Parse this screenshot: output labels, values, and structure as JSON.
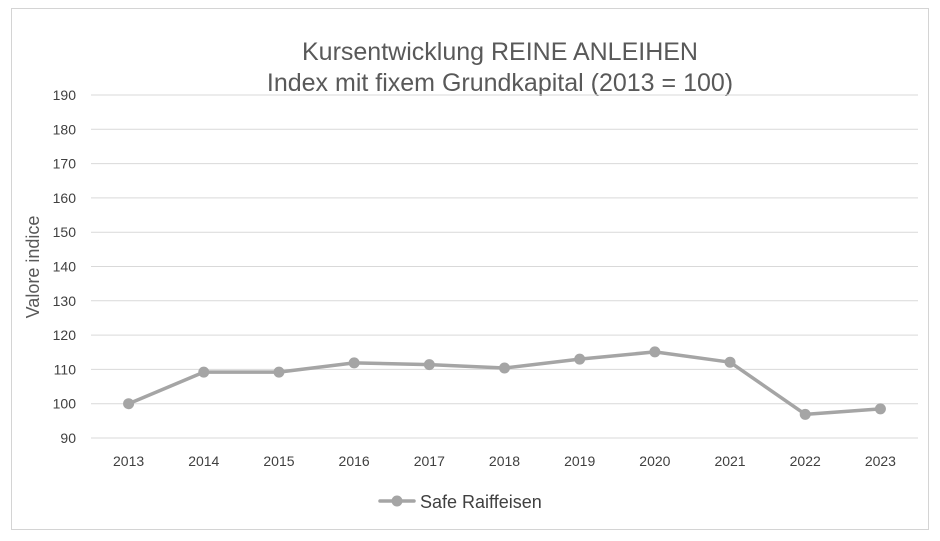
{
  "chart_data": {
    "type": "line",
    "title_line1": "Kursentwicklung REINE ANLEIHEN",
    "title_line2": "Index mit fixem Grundkapital (2013 = 100)",
    "xlabel": "",
    "ylabel": "Valore indice",
    "categories": [
      "2013",
      "2014",
      "2015",
      "2016",
      "2017",
      "2018",
      "2019",
      "2020",
      "2021",
      "2022",
      "2023"
    ],
    "yticks": [
      "90",
      "100",
      "110",
      "120",
      "130",
      "140",
      "150",
      "160",
      "170",
      "180",
      "190"
    ],
    "ylim": [
      90,
      190
    ],
    "series": [
      {
        "name": "Safe Raiffeisen",
        "color": "#a5a5a5",
        "values": [
          100,
          109.2,
          109.2,
          111.9,
          111.4,
          110.4,
          113.0,
          115.1,
          112.1,
          96.9,
          98.5
        ]
      }
    ],
    "grid": true,
    "legend_position": "bottom"
  }
}
